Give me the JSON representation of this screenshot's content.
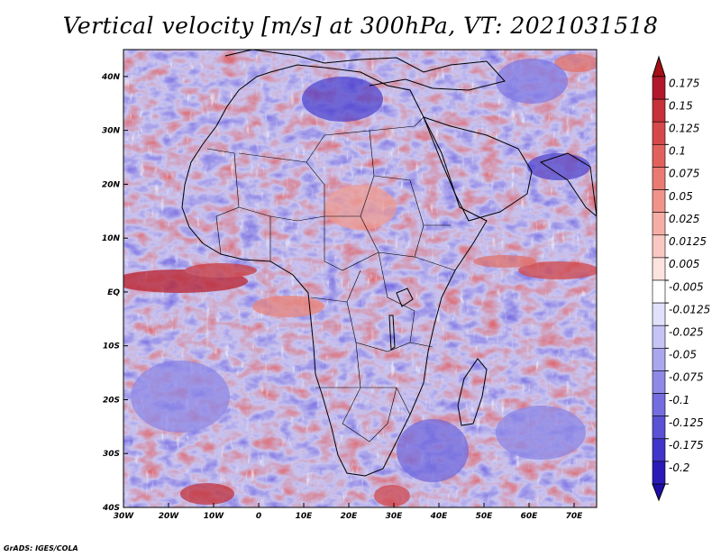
{
  "title": "Vertical velocity [m/s] at 300hPa, VT: 2021031518",
  "credit": "GrADS: IGES/COLA",
  "map": {
    "lon_range": [
      -30,
      75
    ],
    "lat_range": [
      -40,
      45
    ],
    "lon_ticks": [
      {
        "value": -30,
        "label": "30W"
      },
      {
        "value": -20,
        "label": "20W"
      },
      {
        "value": -10,
        "label": "10W"
      },
      {
        "value": 0,
        "label": "0"
      },
      {
        "value": 10,
        "label": "10E"
      },
      {
        "value": 20,
        "label": "20E"
      },
      {
        "value": 30,
        "label": "30E"
      },
      {
        "value": 40,
        "label": "40E"
      },
      {
        "value": 50,
        "label": "50E"
      },
      {
        "value": 60,
        "label": "60E"
      },
      {
        "value": 70,
        "label": "70E"
      }
    ],
    "lat_ticks": [
      {
        "value": 40,
        "label": "40N"
      },
      {
        "value": 30,
        "label": "30N"
      },
      {
        "value": 20,
        "label": "20N"
      },
      {
        "value": 10,
        "label": "10N"
      },
      {
        "value": 0,
        "label": "EQ"
      },
      {
        "value": -10,
        "label": "10S"
      },
      {
        "value": -20,
        "label": "20S"
      },
      {
        "value": -30,
        "label": "30S"
      },
      {
        "value": -40,
        "label": "40S"
      }
    ]
  },
  "colorbar": {
    "levels": [
      {
        "label": "0.175",
        "color": "#b2182b"
      },
      {
        "label": "0.15",
        "color": "#c6313a"
      },
      {
        "label": "0.125",
        "color": "#d6494a"
      },
      {
        "label": "0.1",
        "color": "#e1625d"
      },
      {
        "label": "0.075",
        "color": "#ea7b73"
      },
      {
        "label": "0.05",
        "color": "#f0948b"
      },
      {
        "label": "0.025",
        "color": "#f5aea6"
      },
      {
        "label": "0.0125",
        "color": "#f9c8c2"
      },
      {
        "label": "0.005",
        "color": "#fce3df"
      },
      {
        "label": "-0.005",
        "color": "#ffffff"
      },
      {
        "label": "-0.0125",
        "color": "#e2e1fb"
      },
      {
        "label": "-0.025",
        "color": "#c6c4f5"
      },
      {
        "label": "-0.05",
        "color": "#aaa7ef"
      },
      {
        "label": "-0.075",
        "color": "#8f8ae8"
      },
      {
        "label": "-0.1",
        "color": "#746ddf"
      },
      {
        "label": "-0.125",
        "color": "#5a51d5"
      },
      {
        "label": "-0.175",
        "color": "#4035c8"
      },
      {
        "label": "-0.2",
        "color": "#2a1bb6"
      }
    ],
    "top_cap_color": "#a50f15",
    "bottom_cap_color": "#1f0da8"
  }
}
